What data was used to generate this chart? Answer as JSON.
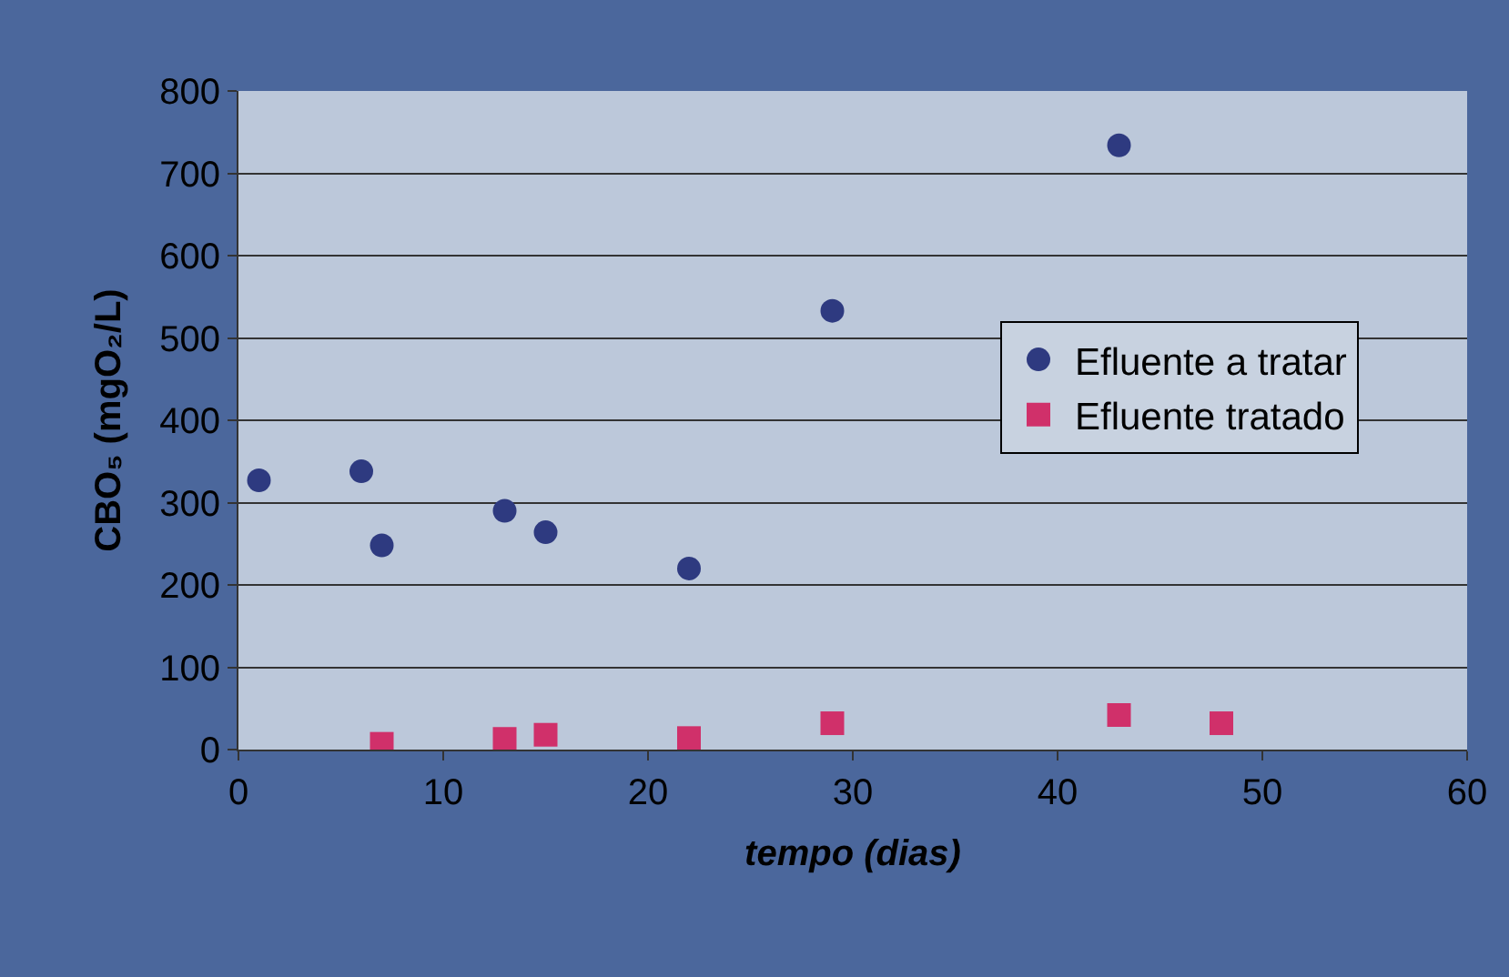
{
  "chart_data": {
    "type": "scatter",
    "xlabel": "tempo (dias)",
    "ylabel": "CBO₅ (mgO₂/L)",
    "xlim": [
      0,
      60
    ],
    "xticks": [
      0,
      10,
      20,
      30,
      40,
      50,
      60
    ],
    "ylim": [
      0,
      800
    ],
    "yticks": [
      0,
      100,
      200,
      300,
      400,
      500,
      600,
      700,
      800
    ],
    "grid": "y",
    "legend": "right",
    "series": [
      {
        "name": "Efluente a tratar",
        "color": "#2e3a80",
        "marker": "circle",
        "x": [
          1,
          6,
          7,
          13,
          15,
          22,
          29,
          43
        ],
        "values": [
          327,
          338,
          248,
          290,
          264,
          220,
          533,
          734
        ]
      },
      {
        "name": "Efluente tratado",
        "color": "#d0306a",
        "marker": "square",
        "x": [
          7,
          13,
          15,
          22,
          29,
          43,
          48
        ],
        "values": [
          7,
          13,
          18,
          14,
          32,
          42,
          32
        ]
      }
    ]
  }
}
